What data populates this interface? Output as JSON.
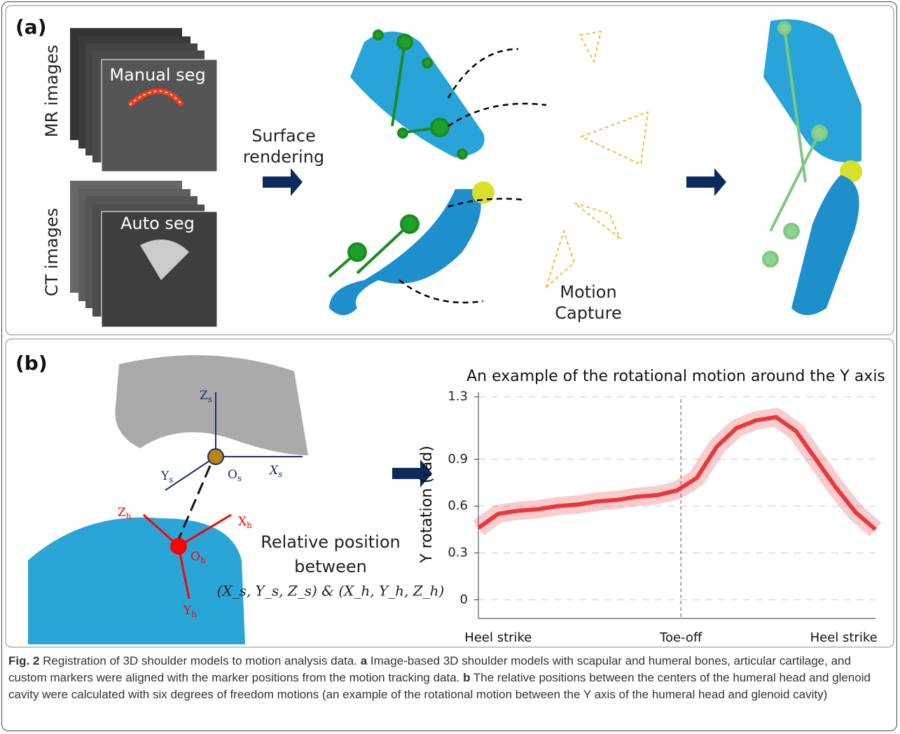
{
  "panel_a": {
    "label": "(a)",
    "mr_label": "MR images",
    "ct_label": "CT images",
    "manual_seg": "Manual seg",
    "auto_seg": "Auto seg",
    "surface_rendering": [
      "Surface",
      "rendering"
    ],
    "motion_capture": [
      "Motion",
      "Capture"
    ]
  },
  "panel_b": {
    "label": "(b)",
    "axes": {
      "zs": {
        "main": "Z",
        "sub": "s"
      },
      "ys": {
        "main": "Y",
        "sub": "s"
      },
      "xs": {
        "main": "X",
        "sub": "s"
      },
      "os": {
        "main": "O",
        "sub": "s"
      },
      "zh": {
        "main": "Z",
        "sub": "h"
      },
      "xh": {
        "main": "X",
        "sub": "h"
      },
      "oh": {
        "main": "O",
        "sub": "h"
      },
      "yh": {
        "main": "Y",
        "sub": "h"
      }
    },
    "relative_position": [
      "Relative position",
      "between",
      "(X_s, Y_s, Z_s) & (X_h, Y_h, Z_h)"
    ]
  },
  "chart_data": {
    "type": "line",
    "title": "An example of the rotational motion around the Y axis",
    "y_label": "Y rotation (rad)",
    "x": [
      0,
      5,
      10,
      15,
      20,
      25,
      30,
      35,
      40,
      45,
      50,
      55,
      60,
      65,
      70,
      75,
      80,
      85,
      90,
      95,
      100
    ],
    "series": [
      {
        "color": "#e8383d",
        "values": [
          0.46,
          0.55,
          0.57,
          0.58,
          0.6,
          0.61,
          0.63,
          0.64,
          0.66,
          0.67,
          0.7,
          0.78,
          0.98,
          1.1,
          1.15,
          1.17,
          1.08,
          0.9,
          0.72,
          0.56,
          0.45
        ]
      }
    ],
    "xlim": [
      0,
      100
    ],
    "ylim": [
      -0.12,
      1.33
    ],
    "yticks": [
      0,
      0.3,
      0.6,
      0.9,
      1.3
    ],
    "grid": true,
    "annotations": [
      {
        "text": "Heel strike",
        "x": 5
      },
      {
        "text": "Toe-off",
        "x": 51
      },
      {
        "text": "Heel strike",
        "x": 92
      }
    ],
    "vline_x": 51
  },
  "caption": {
    "fig": "Fig. 2",
    "parts": [
      {
        "text": " Registration of 3D shoulder models to motion analysis data. ",
        "bold": false
      },
      {
        "text": "a",
        "bold": true
      },
      {
        "text": " Image-based 3D shoulder models with scapular and humeral bones, articular cartilage, and custom markers were aligned with the marker positions from the motion tracking data. ",
        "bold": false
      },
      {
        "text": "b",
        "bold": true
      },
      {
        "text": " The relative positions between the centers of the humeral head and glenoid cavity were calculated with six degrees of freedom motions (an example of the rotational motion between the Y axis of the humeral head and glenoid cavity)",
        "bold": false
      }
    ]
  }
}
